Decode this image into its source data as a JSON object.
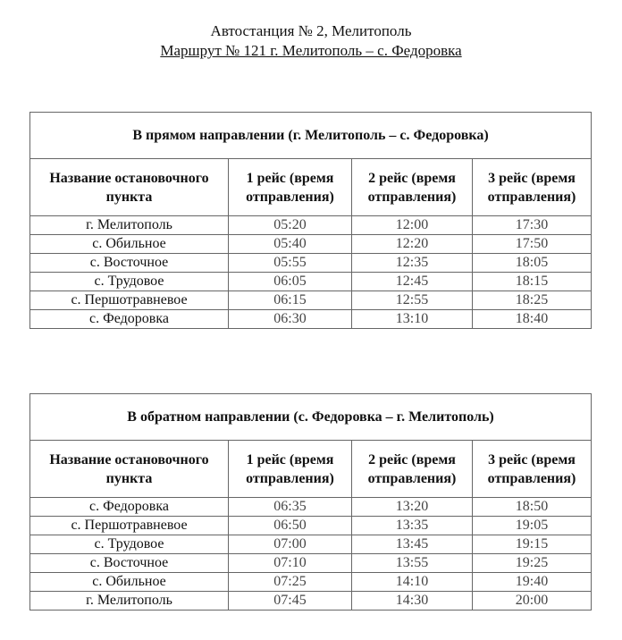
{
  "header": {
    "line1": "Автостанция № 2, Мелитополь",
    "line2": "Маршрут № 121 г. Мелитополь – с. Федоровка"
  },
  "columns": [
    "Название остановочного пункта",
    "1 рейс (время отправления)",
    "2 рейс (время отправления)",
    "3 рейс (время отправления)"
  ],
  "forward": {
    "caption": "В прямом направлении (г. Мелитополь – с. Федоровка)",
    "rows": [
      [
        "г. Мелитополь",
        "05:20",
        "12:00",
        "17:30"
      ],
      [
        "с. Обильное",
        "05:40",
        "12:20",
        "17:50"
      ],
      [
        "с. Восточное",
        "05:55",
        "12:35",
        "18:05"
      ],
      [
        "с. Трудовое",
        "06:05",
        "12:45",
        "18:15"
      ],
      [
        "с. Першотравневое",
        "06:15",
        "12:55",
        "18:25"
      ],
      [
        "с. Федоровка",
        "06:30",
        "13:10",
        "18:40"
      ]
    ]
  },
  "backward": {
    "caption": "В обратном направлении (с. Федоровка – г. Мелитополь)",
    "rows": [
      [
        "с. Федоровка",
        "06:35",
        "13:20",
        "18:50"
      ],
      [
        "с. Першотравневое",
        "06:50",
        "13:35",
        "19:05"
      ],
      [
        "с. Трудовое",
        "07:00",
        "13:45",
        "19:15"
      ],
      [
        "с. Восточное",
        "07:10",
        "13:55",
        "19:25"
      ],
      [
        "с. Обильное",
        "07:25",
        "14:10",
        "19:40"
      ],
      [
        "г. Мелитополь",
        "07:45",
        "14:30",
        "20:00"
      ]
    ]
  }
}
